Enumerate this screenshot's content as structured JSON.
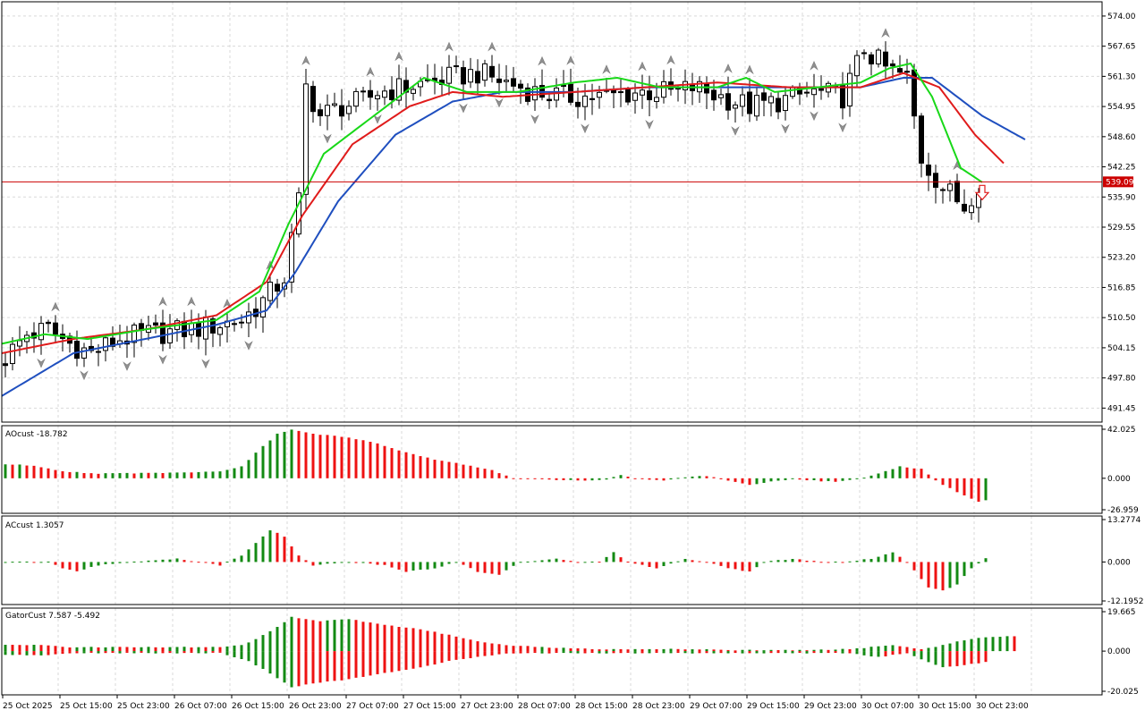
{
  "colors": {
    "background": "#ffffff",
    "grid": "#d9d9d9",
    "bull_candle": "#ffffff",
    "bear_candle": "#000000",
    "jaw": "#1f4fbf",
    "teeth": "#e01b1b",
    "lips": "#18d818",
    "price_line": "#cc0000",
    "bar_up": "#138a13",
    "bar_down": "#ee1111",
    "fractal": "#909090",
    "signal_arrow": "#e01b1b"
  },
  "price_axis": {
    "ticks": [
      "574.00",
      "567.65",
      "561.30",
      "554.95",
      "548.60",
      "542.25",
      "535.90",
      "529.55",
      "523.20",
      "516.85",
      "510.50",
      "504.15",
      "497.80",
      "491.45"
    ],
    "current_label": "539.09"
  },
  "time_axis": {
    "labels": [
      "25 Oct 2025",
      "25 Oct 15:00",
      "25 Oct 23:00",
      "26 Oct 07:00",
      "26 Oct 15:00",
      "26 Oct 23:00",
      "27 Oct 07:00",
      "27 Oct 15:00",
      "27 Oct 23:00",
      "28 Oct 07:00",
      "28 Oct 15:00",
      "28 Oct 23:00",
      "29 Oct 07:00",
      "29 Oct 15:00",
      "29 Oct 23:00",
      "30 Oct 07:00",
      "30 Oct 15:00",
      "30 Oct 23:00"
    ]
  },
  "panels": {
    "ao": {
      "title": "AOcust -18.782",
      "ticks": [
        "42.025",
        "0.000",
        "-26.959"
      ]
    },
    "ac": {
      "title": "ACcust 1.3057",
      "ticks": [
        "13.2774",
        "0.000",
        "-12.1952"
      ]
    },
    "gator": {
      "title": "GatorCust 7.587 -5.492",
      "ticks": [
        "19.665",
        "0.000",
        "-20.025"
      ]
    }
  },
  "chart_data": [
    {
      "type": "candlestick",
      "price_range": [
        488.5,
        577.0
      ],
      "current_price": 539.09,
      "candle_count": 137,
      "price_anchors": [
        [
          0,
          502
        ],
        [
          3,
          507
        ],
        [
          6,
          508
        ],
        [
          9,
          505
        ],
        [
          12,
          503
        ],
        [
          16,
          506
        ],
        [
          20,
          507
        ],
        [
          26,
          508
        ],
        [
          33,
          510
        ],
        [
          36,
          514
        ],
        [
          39,
          519
        ],
        [
          41,
          535
        ],
        [
          42,
          559
        ],
        [
          44,
          553
        ],
        [
          47,
          555
        ],
        [
          50,
          556
        ],
        [
          52,
          558
        ],
        [
          56,
          559
        ],
        [
          62,
          561
        ],
        [
          66,
          562
        ],
        [
          70,
          560
        ],
        [
          74,
          558
        ],
        [
          78,
          557
        ],
        [
          84,
          557
        ],
        [
          88,
          558
        ],
        [
          94,
          558
        ],
        [
          96,
          559
        ],
        [
          100,
          557
        ],
        [
          104,
          555
        ],
        [
          108,
          556
        ],
        [
          113,
          558
        ],
        [
          117,
          557
        ],
        [
          120,
          567
        ],
        [
          123,
          563
        ],
        [
          126,
          561
        ],
        [
          128,
          544
        ],
        [
          131,
          538
        ],
        [
          134,
          534
        ],
        [
          136,
          539
        ]
      ],
      "alligator_jaw": [
        [
          0,
          494
        ],
        [
          10,
          503
        ],
        [
          20,
          506
        ],
        [
          30,
          509
        ],
        [
          37,
          512
        ],
        [
          41,
          520
        ],
        [
          47,
          535
        ],
        [
          55,
          549
        ],
        [
          63,
          556
        ],
        [
          70,
          558
        ],
        [
          80,
          558
        ],
        [
          90,
          559
        ],
        [
          100,
          559
        ],
        [
          110,
          559
        ],
        [
          120,
          559
        ],
        [
          126,
          561
        ],
        [
          130,
          561
        ],
        [
          137,
          553
        ],
        [
          143,
          548
        ]
      ],
      "alligator_teeth": [
        [
          0,
          503
        ],
        [
          10,
          506
        ],
        [
          20,
          508
        ],
        [
          30,
          511
        ],
        [
          37,
          518
        ],
        [
          42,
          532
        ],
        [
          49,
          547
        ],
        [
          57,
          555
        ],
        [
          63,
          558
        ],
        [
          70,
          557
        ],
        [
          80,
          558
        ],
        [
          90,
          559
        ],
        [
          100,
          560
        ],
        [
          110,
          559
        ],
        [
          120,
          559
        ],
        [
          126,
          562
        ],
        [
          131,
          559
        ],
        [
          136,
          549
        ],
        [
          140,
          543
        ]
      ],
      "alligator_lips": [
        [
          0,
          505
        ],
        [
          6,
          507
        ],
        [
          12,
          506
        ],
        [
          20,
          508
        ],
        [
          30,
          510
        ],
        [
          36,
          516
        ],
        [
          40,
          530
        ],
        [
          45,
          545
        ],
        [
          52,
          553
        ],
        [
          59,
          561
        ],
        [
          65,
          558
        ],
        [
          72,
          558
        ],
        [
          80,
          560
        ],
        [
          86,
          561
        ],
        [
          92,
          559
        ],
        [
          100,
          559
        ],
        [
          104,
          561
        ],
        [
          108,
          558
        ],
        [
          114,
          559
        ],
        [
          120,
          560
        ],
        [
          124,
          563
        ],
        [
          127,
          564
        ],
        [
          130,
          557
        ],
        [
          134,
          542
        ],
        [
          137,
          539
        ]
      ],
      "sell_signal_candle": 138
    },
    {
      "type": "bar",
      "name": "AOcust",
      "ylim": [
        -26.959,
        42.025
      ],
      "anchors": [
        [
          0,
          12
        ],
        [
          4,
          11
        ],
        [
          8,
          6
        ],
        [
          13,
          4
        ],
        [
          25,
          5
        ],
        [
          30,
          6
        ],
        [
          33,
          10
        ],
        [
          35,
          22
        ],
        [
          38,
          38
        ],
        [
          40,
          42
        ],
        [
          43,
          38
        ],
        [
          48,
          35
        ],
        [
          52,
          30
        ],
        [
          56,
          22
        ],
        [
          60,
          16
        ],
        [
          64,
          12
        ],
        [
          68,
          7
        ],
        [
          71,
          0
        ],
        [
          76,
          -1
        ],
        [
          80,
          -2
        ],
        [
          84,
          -1
        ],
        [
          86,
          3
        ],
        [
          88,
          0
        ],
        [
          92,
          -2
        ],
        [
          95,
          1
        ],
        [
          98,
          2
        ],
        [
          101,
          -2
        ],
        [
          104,
          -6
        ],
        [
          107,
          -3
        ],
        [
          110,
          -1
        ],
        [
          113,
          -2
        ],
        [
          116,
          -3
        ],
        [
          119,
          -1
        ],
        [
          121,
          2
        ],
        [
          125,
          10
        ],
        [
          128,
          8
        ],
        [
          130,
          -2
        ],
        [
          133,
          -12
        ],
        [
          136,
          -20
        ],
        [
          137,
          -18.78
        ]
      ]
    },
    {
      "type": "bar",
      "name": "ACcust",
      "ylim": [
        -12.1952,
        13.2774
      ],
      "anchors": [
        [
          0,
          0
        ],
        [
          6,
          0
        ],
        [
          8,
          -2
        ],
        [
          10,
          -3
        ],
        [
          13,
          -1
        ],
        [
          18,
          0
        ],
        [
          24,
          1
        ],
        [
          27,
          0
        ],
        [
          30,
          -1
        ],
        [
          33,
          2
        ],
        [
          35,
          6
        ],
        [
          37,
          10
        ],
        [
          39,
          8
        ],
        [
          41,
          2
        ],
        [
          43,
          -1
        ],
        [
          48,
          0
        ],
        [
          53,
          -1
        ],
        [
          56,
          -3
        ],
        [
          60,
          -2
        ],
        [
          63,
          0
        ],
        [
          66,
          -3
        ],
        [
          69,
          -4
        ],
        [
          72,
          0
        ],
        [
          77,
          1
        ],
        [
          80,
          0
        ],
        [
          83,
          0
        ],
        [
          85,
          3
        ],
        [
          87,
          0
        ],
        [
          91,
          -2
        ],
        [
          95,
          1
        ],
        [
          98,
          0
        ],
        [
          101,
          -2
        ],
        [
          104,
          -3
        ],
        [
          106,
          0
        ],
        [
          110,
          1
        ],
        [
          114,
          0
        ],
        [
          117,
          0
        ],
        [
          121,
          1
        ],
        [
          124,
          3
        ],
        [
          126,
          0
        ],
        [
          129,
          -8
        ],
        [
          131,
          -9
        ],
        [
          133,
          -7
        ],
        [
          135,
          -2
        ],
        [
          137,
          1.31
        ]
      ]
    },
    {
      "type": "bar",
      "name": "GatorCust",
      "ylim": [
        -20.025,
        19.665
      ],
      "upper_anchors": [
        [
          0,
          3
        ],
        [
          6,
          3
        ],
        [
          9,
          2
        ],
        [
          13,
          2
        ],
        [
          20,
          2
        ],
        [
          25,
          2
        ],
        [
          30,
          2
        ],
        [
          33,
          3
        ],
        [
          35,
          6
        ],
        [
          38,
          12
        ],
        [
          40,
          17
        ],
        [
          44,
          15
        ],
        [
          48,
          16
        ],
        [
          53,
          13
        ],
        [
          58,
          11
        ],
        [
          62,
          8
        ],
        [
          66,
          5
        ],
        [
          70,
          3
        ],
        [
          75,
          2
        ],
        [
          82,
          1
        ],
        [
          88,
          1
        ],
        [
          95,
          1
        ],
        [
          101,
          0.5
        ],
        [
          106,
          0.5
        ],
        [
          112,
          0.5
        ],
        [
          118,
          1
        ],
        [
          121,
          2
        ],
        [
          124,
          3
        ],
        [
          126,
          2
        ],
        [
          128,
          1
        ],
        [
          130,
          2
        ],
        [
          133,
          5
        ],
        [
          137,
          7
        ],
        [
          141,
          7.6
        ]
      ],
      "lower_anchors": [
        [
          0,
          -2
        ],
        [
          6,
          -2
        ],
        [
          10,
          -1
        ],
        [
          18,
          -1
        ],
        [
          25,
          -1
        ],
        [
          30,
          -1
        ],
        [
          34,
          -5
        ],
        [
          37,
          -11
        ],
        [
          40,
          -18
        ],
        [
          43,
          -16
        ],
        [
          48,
          -14
        ],
        [
          53,
          -11
        ],
        [
          58,
          -8
        ],
        [
          62,
          -5
        ],
        [
          66,
          -3
        ],
        [
          70,
          -1
        ],
        [
          75,
          -1
        ],
        [
          82,
          -1
        ],
        [
          88,
          -1
        ],
        [
          95,
          -1
        ],
        [
          101,
          -1
        ],
        [
          106,
          -1
        ],
        [
          112,
          -1
        ],
        [
          118,
          -1
        ],
        [
          120,
          -2
        ],
        [
          122,
          -3
        ],
        [
          126,
          -1
        ],
        [
          128,
          -4
        ],
        [
          131,
          -8
        ],
        [
          134,
          -7
        ],
        [
          137,
          -5.49
        ]
      ]
    }
  ]
}
